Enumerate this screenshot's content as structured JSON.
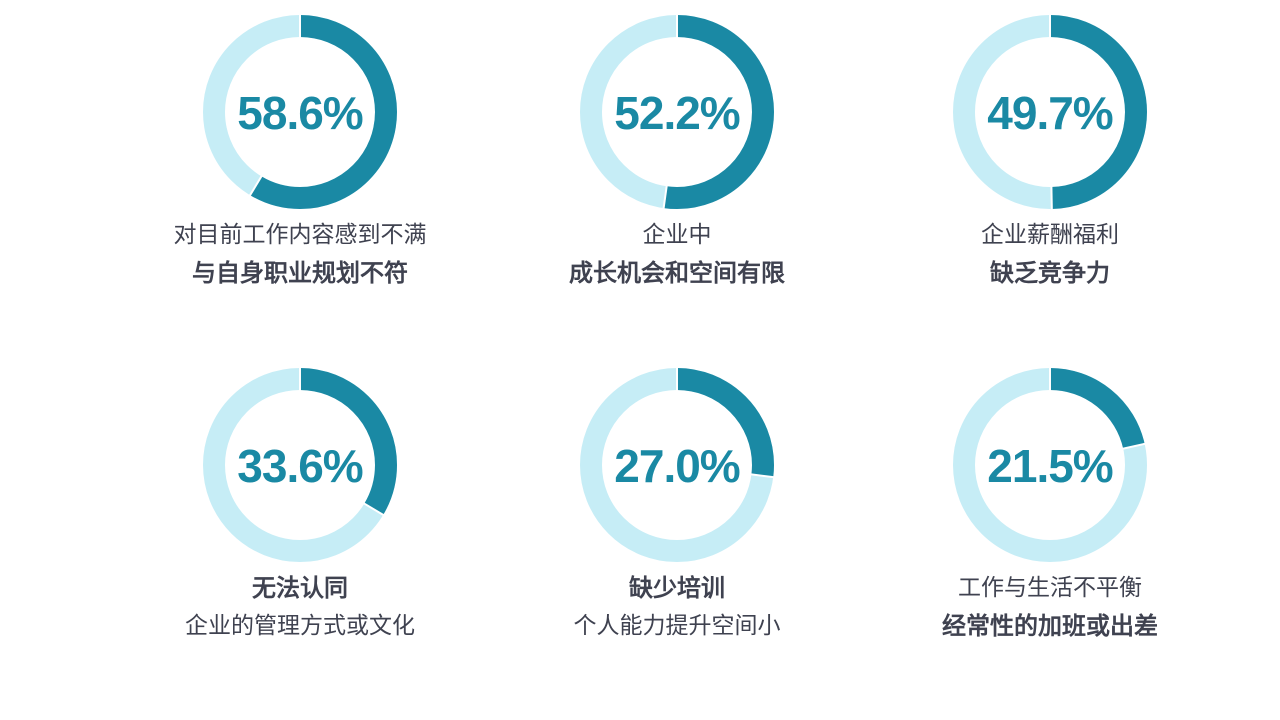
{
  "chart_data": {
    "type": "pie",
    "variant": "donut-grid",
    "colors": {
      "filled": "#1a89a4",
      "track": "#c6edf6",
      "value_text": "#1a89a4",
      "label_text": "#3f4250"
    },
    "items": [
      {
        "value": 58.6,
        "label": "58.6%",
        "caption": [
          {
            "text": "对目前工作内容感到不满",
            "bold": false
          },
          {
            "text": "与自身职业规划不符",
            "bold": true
          }
        ]
      },
      {
        "value": 52.2,
        "label": "52.2%",
        "caption": [
          {
            "text": "企业中",
            "bold": false
          },
          {
            "text": "成长机会和空间有限",
            "bold": true
          }
        ]
      },
      {
        "value": 49.7,
        "label": "49.7%",
        "caption": [
          {
            "text": "企业薪酬福利",
            "bold": false
          },
          {
            "text": "缺乏竞争力",
            "bold": true
          }
        ]
      },
      {
        "value": 33.6,
        "label": "33.6%",
        "caption": [
          {
            "text": "无法认同",
            "bold": true
          },
          {
            "text": "企业的管理方式或文化",
            "bold": false
          }
        ]
      },
      {
        "value": 27.0,
        "label": "27.0%",
        "caption": [
          {
            "text": "缺少培训",
            "bold": true
          },
          {
            "text": "个人能力提升空间小",
            "bold": false
          }
        ]
      },
      {
        "value": 21.5,
        "label": "21.5%",
        "caption": [
          {
            "text": "工作与生活不平衡",
            "bold": false
          },
          {
            "text": "经常性的加班或出差",
            "bold": true
          }
        ]
      }
    ]
  }
}
